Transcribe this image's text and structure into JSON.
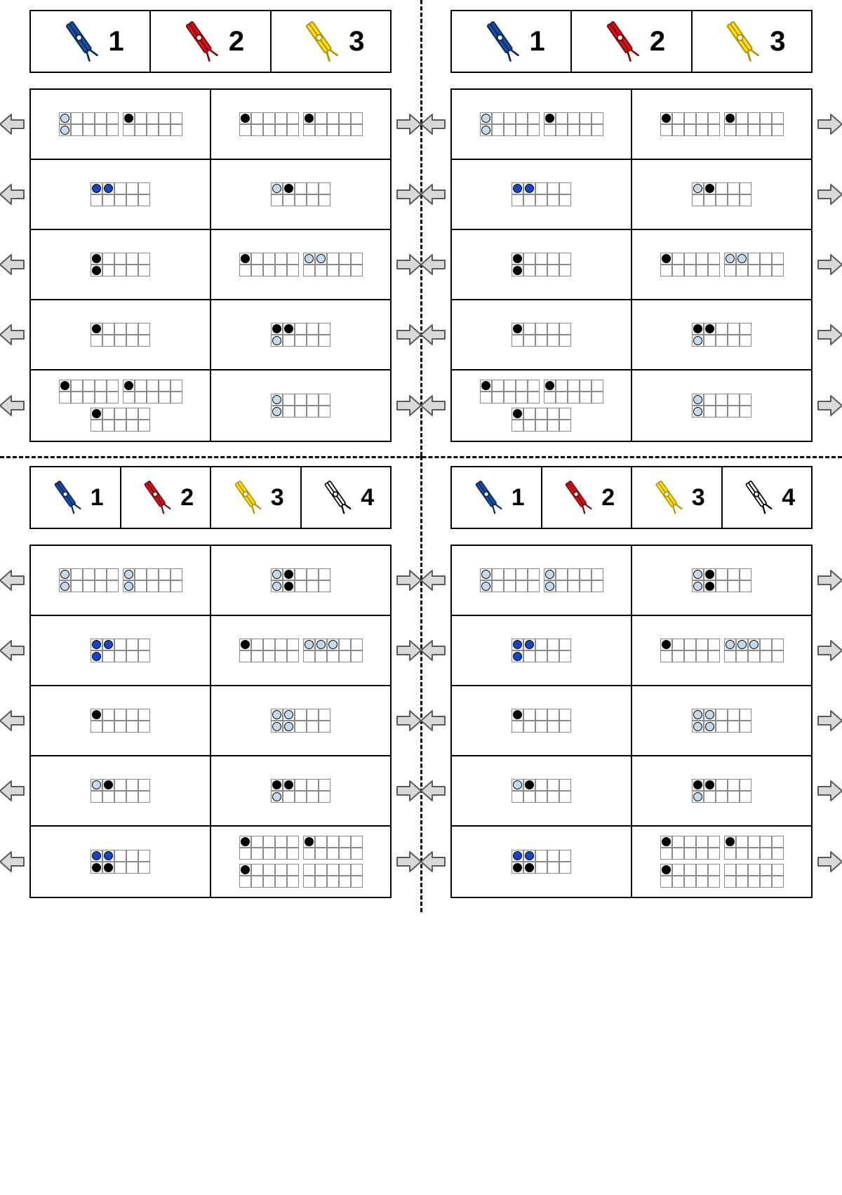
{
  "colors": {
    "black": "#000000",
    "light": "#c3daf0",
    "blue": "#1646c4",
    "arrow_fill": "#d9d9d9",
    "arrow_stroke": "#5a5a5a",
    "pin_blue_fill": "#1a4fa3",
    "pin_blue_stroke": "#0b2a5e",
    "pin_red_fill": "#d8121a",
    "pin_red_stroke": "#7a0a0e",
    "pin_yellow_fill": "#ffe21a",
    "pin_yellow_stroke": "#b89200",
    "pin_white_fill": "#ffffff",
    "pin_white_stroke": "#000000"
  },
  "legends": {
    "three": [
      {
        "pin": "blue",
        "num": "1"
      },
      {
        "pin": "red",
        "num": "2"
      },
      {
        "pin": "yellow",
        "num": "3"
      }
    ],
    "four": [
      {
        "pin": "blue",
        "num": "1"
      },
      {
        "pin": "red",
        "num": "2"
      },
      {
        "pin": "yellow",
        "num": "3"
      },
      {
        "pin": "white",
        "num": "4"
      }
    ]
  },
  "quadrants": [
    {
      "legend": "three",
      "rows": [
        {
          "left": [
            {
              "dots": [
                [
                  0,
                  "light"
                ],
                [
                  5,
                  "light"
                ]
              ]
            },
            {
              "dots": [
                [
                  0,
                  "black"
                ]
              ]
            }
          ],
          "right": [
            {
              "dots": [
                [
                  0,
                  "black"
                ]
              ]
            },
            {
              "dots": [
                [
                  0,
                  "black"
                ]
              ]
            }
          ]
        },
        {
          "left": [
            {
              "dots": [
                [
                  0,
                  "blue"
                ],
                [
                  1,
                  "blue"
                ]
              ]
            }
          ],
          "right": [
            {
              "dots": [
                [
                  0,
                  "light"
                ],
                [
                  1,
                  "black"
                ]
              ]
            }
          ]
        },
        {
          "left": [
            {
              "dots": [
                [
                  0,
                  "black"
                ],
                [
                  5,
                  "black"
                ]
              ]
            }
          ],
          "right": [
            {
              "dots": [
                [
                  0,
                  "black"
                ]
              ]
            },
            {
              "dots": [
                [
                  0,
                  "light"
                ],
                [
                  1,
                  "light"
                ]
              ]
            }
          ]
        },
        {
          "left": [
            {
              "dots": [
                [
                  0,
                  "black"
                ]
              ]
            }
          ],
          "right": [
            {
              "dots": [
                [
                  0,
                  "black"
                ],
                [
                  1,
                  "black"
                ],
                [
                  5,
                  "light"
                ]
              ]
            }
          ]
        },
        {
          "left": [
            {
              "dots": [
                [
                  0,
                  "black"
                ]
              ]
            },
            {
              "dots": [
                [
                  0,
                  "black"
                ]
              ]
            },
            {
              "dots": [
                [
                  0,
                  "black"
                ]
              ]
            }
          ],
          "right": [
            {
              "dots": [
                [
                  0,
                  "light"
                ],
                [
                  5,
                  "light"
                ]
              ]
            }
          ]
        }
      ]
    },
    {
      "legend": "three",
      "rows": [
        {
          "left": [
            {
              "dots": [
                [
                  0,
                  "light"
                ],
                [
                  5,
                  "light"
                ]
              ]
            },
            {
              "dots": [
                [
                  0,
                  "black"
                ]
              ]
            }
          ],
          "right": [
            {
              "dots": [
                [
                  0,
                  "black"
                ]
              ]
            },
            {
              "dots": [
                [
                  0,
                  "black"
                ]
              ]
            }
          ]
        },
        {
          "left": [
            {
              "dots": [
                [
                  0,
                  "blue"
                ],
                [
                  1,
                  "blue"
                ]
              ]
            }
          ],
          "right": [
            {
              "dots": [
                [
                  0,
                  "light"
                ],
                [
                  1,
                  "black"
                ]
              ]
            }
          ]
        },
        {
          "left": [
            {
              "dots": [
                [
                  0,
                  "black"
                ],
                [
                  5,
                  "black"
                ]
              ]
            }
          ],
          "right": [
            {
              "dots": [
                [
                  0,
                  "black"
                ]
              ]
            },
            {
              "dots": [
                [
                  0,
                  "light"
                ],
                [
                  1,
                  "light"
                ]
              ]
            }
          ]
        },
        {
          "left": [
            {
              "dots": [
                [
                  0,
                  "black"
                ]
              ]
            }
          ],
          "right": [
            {
              "dots": [
                [
                  0,
                  "black"
                ],
                [
                  1,
                  "black"
                ],
                [
                  5,
                  "light"
                ]
              ]
            }
          ]
        },
        {
          "left": [
            {
              "dots": [
                [
                  0,
                  "black"
                ]
              ]
            },
            {
              "dots": [
                [
                  0,
                  "black"
                ]
              ]
            },
            {
              "dots": [
                [
                  0,
                  "black"
                ]
              ]
            }
          ],
          "right": [
            {
              "dots": [
                [
                  0,
                  "light"
                ],
                [
                  5,
                  "light"
                ]
              ]
            }
          ]
        }
      ]
    },
    {
      "legend": "four",
      "rows": [
        {
          "left": [
            {
              "dots": [
                [
                  0,
                  "light"
                ],
                [
                  5,
                  "light"
                ]
              ]
            },
            {
              "dots": [
                [
                  0,
                  "light"
                ],
                [
                  5,
                  "light"
                ]
              ]
            }
          ],
          "right": [
            {
              "dots": [
                [
                  0,
                  "light"
                ],
                [
                  1,
                  "black"
                ],
                [
                  5,
                  "light"
                ],
                [
                  6,
                  "black"
                ]
              ]
            }
          ]
        },
        {
          "left": [
            {
              "dots": [
                [
                  0,
                  "blue"
                ],
                [
                  1,
                  "blue"
                ],
                [
                  5,
                  "blue"
                ]
              ]
            }
          ],
          "right": [
            {
              "dots": [
                [
                  0,
                  "black"
                ]
              ]
            },
            {
              "dots": [
                [
                  0,
                  "light"
                ],
                [
                  1,
                  "light"
                ],
                [
                  2,
                  "light"
                ]
              ]
            }
          ]
        },
        {
          "left": [
            {
              "dots": [
                [
                  0,
                  "black"
                ]
              ]
            }
          ],
          "right": [
            {
              "dots": [
                [
                  0,
                  "light"
                ],
                [
                  1,
                  "light"
                ],
                [
                  5,
                  "light"
                ],
                [
                  6,
                  "light"
                ]
              ]
            }
          ]
        },
        {
          "left": [
            {
              "dots": [
                [
                  0,
                  "light"
                ],
                [
                  1,
                  "black"
                ]
              ]
            }
          ],
          "right": [
            {
              "dots": [
                [
                  0,
                  "black"
                ],
                [
                  1,
                  "black"
                ],
                [
                  5,
                  "light"
                ]
              ]
            }
          ]
        },
        {
          "left": [
            {
              "dots": [
                [
                  0,
                  "blue"
                ],
                [
                  1,
                  "blue"
                ],
                [
                  5,
                  "black"
                ],
                [
                  6,
                  "black"
                ]
              ]
            }
          ],
          "right": [
            {
              "dots": [
                [
                  0,
                  "black"
                ]
              ]
            },
            {
              "dots": [
                [
                  0,
                  "black"
                ]
              ]
            },
            {
              "dots": [
                [
                  0,
                  "black"
                ]
              ]
            },
            {
              "dots": []
            }
          ]
        }
      ]
    },
    {
      "legend": "four",
      "rows": [
        {
          "left": [
            {
              "dots": [
                [
                  0,
                  "light"
                ],
                [
                  5,
                  "light"
                ]
              ]
            },
            {
              "dots": [
                [
                  0,
                  "light"
                ],
                [
                  5,
                  "light"
                ]
              ]
            }
          ],
          "right": [
            {
              "dots": [
                [
                  0,
                  "light"
                ],
                [
                  1,
                  "black"
                ],
                [
                  5,
                  "light"
                ],
                [
                  6,
                  "black"
                ]
              ]
            }
          ]
        },
        {
          "left": [
            {
              "dots": [
                [
                  0,
                  "blue"
                ],
                [
                  1,
                  "blue"
                ],
                [
                  5,
                  "blue"
                ]
              ]
            }
          ],
          "right": [
            {
              "dots": [
                [
                  0,
                  "black"
                ]
              ]
            },
            {
              "dots": [
                [
                  0,
                  "light"
                ],
                [
                  1,
                  "light"
                ],
                [
                  2,
                  "light"
                ]
              ]
            }
          ]
        },
        {
          "left": [
            {
              "dots": [
                [
                  0,
                  "black"
                ]
              ]
            }
          ],
          "right": [
            {
              "dots": [
                [
                  0,
                  "light"
                ],
                [
                  1,
                  "light"
                ],
                [
                  5,
                  "light"
                ],
                [
                  6,
                  "light"
                ]
              ]
            }
          ]
        },
        {
          "left": [
            {
              "dots": [
                [
                  0,
                  "light"
                ],
                [
                  1,
                  "black"
                ]
              ]
            }
          ],
          "right": [
            {
              "dots": [
                [
                  0,
                  "black"
                ],
                [
                  1,
                  "black"
                ],
                [
                  5,
                  "light"
                ]
              ]
            }
          ]
        },
        {
          "left": [
            {
              "dots": [
                [
                  0,
                  "blue"
                ],
                [
                  1,
                  "blue"
                ],
                [
                  5,
                  "black"
                ],
                [
                  6,
                  "black"
                ]
              ]
            }
          ],
          "right": [
            {
              "dots": [
                [
                  0,
                  "black"
                ]
              ]
            },
            {
              "dots": [
                [
                  0,
                  "black"
                ]
              ]
            },
            {
              "dots": [
                [
                  0,
                  "black"
                ]
              ]
            },
            {
              "dots": []
            }
          ]
        }
      ]
    }
  ]
}
